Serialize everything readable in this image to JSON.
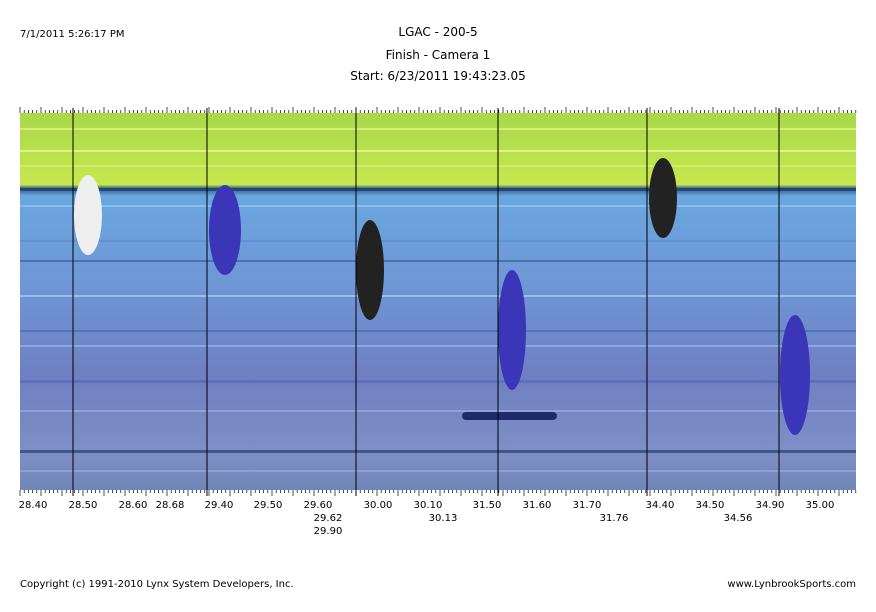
{
  "header": {
    "timestamp": "7/1/2011 5:26:17 PM",
    "title": "LGAC - 200-5",
    "subtitle": "Finish - Camera 1",
    "start": "Start: 6/23/2011 19:43:23.05"
  },
  "scale": {
    "row1": [
      "28.40",
      "28.50",
      "28.60",
      "28.68",
      "29.40",
      "29.50",
      "29.60",
      "30.00",
      "30.10",
      "31.50",
      "31.60",
      "31.70",
      "34.40",
      "34.50",
      "34.90",
      "35.00"
    ],
    "row2": [
      "29.62",
      "30.13",
      "31.76",
      "34.56"
    ],
    "row3": [
      "29.90"
    ]
  },
  "footer": {
    "copyright": "Copyright (c) 1991-2010 Lynx System Developers, Inc.",
    "website": "www.LynbrookSports.com"
  }
}
